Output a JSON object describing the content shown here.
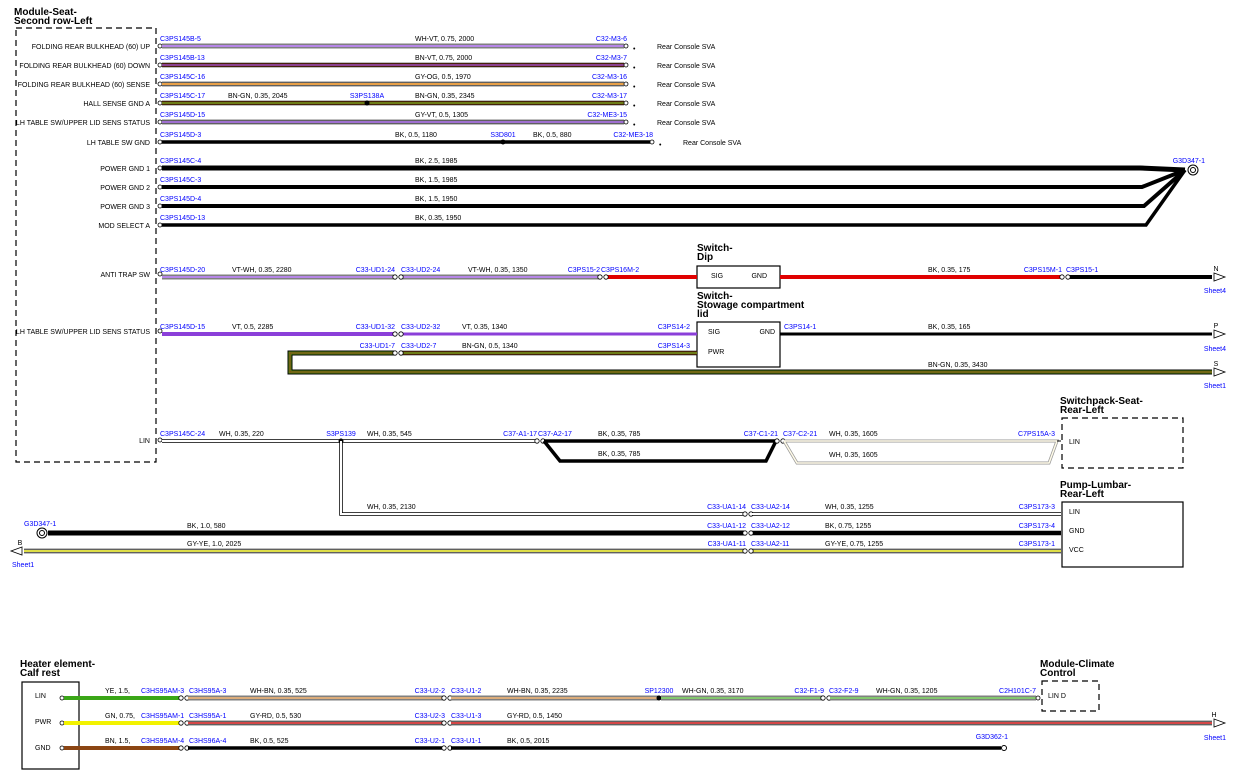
{
  "modules": {
    "seat": "Module-Seat-\nSecond row-Left",
    "dip": "Switch-\nDip",
    "stowage": "Switch-\nStowage compartment\nlid",
    "switchpack": "Switchpack-Seat-\nRear-Left",
    "pump": "Pump-Lumbar-\nRear-Left",
    "heater": "Heater element-\nCalf rest",
    "climate": "Module-Climate\nControl"
  },
  "pins": {
    "seat": [
      "FOLDING REAR BULKHEAD (60) UP",
      "FOLDING REAR BULKHEAD (60) DOWN",
      "FOLDING REAR BULKHEAD (60) SENSE",
      "HALL SENSE GND A",
      "LH TABLE SW/UPPER LID SENS STATUS",
      "LH TABLE SW GND",
      "POWER GND 1",
      "POWER GND 2",
      "POWER GND 3",
      "MOD SELECT A",
      "ANTI TRAP SW",
      "LH TABLE SW/UPPER LID SENS STATUS",
      "LIN"
    ],
    "dip": [
      "SIG",
      "GND"
    ],
    "stowage": [
      "SIG",
      "GND",
      "PWR"
    ],
    "switchpack": [
      "LIN"
    ],
    "pump": [
      "LIN",
      "GND",
      "VCC"
    ],
    "heater": [
      "LIN",
      "PWR",
      "GND"
    ],
    "climate": [
      "LIN D"
    ]
  },
  "wires": [
    {
      "c1": "C3PS145B-5",
      "spec": "WH-VT, 0.75, 2000",
      "c2": "C32-M3-6",
      "dest": "Rear Console SVA",
      "colors": [
        "#ffffff",
        "#8b3fd9"
      ]
    },
    {
      "c1": "C3PS145B-13",
      "spec": "BN-VT, 0.75, 2000",
      "c2": "C32-M3-7",
      "dest": "Rear Console SVA",
      "colors": [
        "#8b4513",
        "#8b3fd9"
      ]
    },
    {
      "c1": "C3PS145C-16",
      "spec": "GY-OG, 0.5, 1970",
      "c2": "C32-M3-16",
      "dest": "Rear Console SVA",
      "colors": [
        "#c0c0c0",
        "#ff8c00"
      ]
    },
    {
      "c1": "C3PS145C-17",
      "spec1": "BN-GN, 0.35, 2045",
      "splice": "S3PS138A",
      "spec": "BN-GN, 0.35, 2345",
      "c2": "C32-M3-17",
      "dest": "Rear Console SVA",
      "colors": [
        "#8b4513",
        "#5a9e1a"
      ]
    },
    {
      "c1": "C3PS145D-15",
      "spec": "GY-VT, 0.5, 1305",
      "c2": "C32-ME3-15",
      "dest": "Rear Console SVA",
      "colors": [
        "#c0c0c0",
        "#8b3fd9"
      ]
    },
    {
      "c1": "C3PS145D-3",
      "spec1": "BK, 0.5, 1180",
      "splice": "S3D801",
      "spec": "BK, 0.5, 880",
      "c2": "C32-ME3-18",
      "dest": "Rear Console SVA",
      "colors": [
        "#000000"
      ]
    },
    {
      "c1": "C3PS145C-4",
      "spec": "BK, 2.5, 1985",
      "colors": [
        "#000000"
      ]
    },
    {
      "c1": "C3PS145C-3",
      "spec": "BK, 1.5, 1985",
      "colors": [
        "#000000"
      ]
    },
    {
      "c1": "C3PS145D-4",
      "spec": "BK, 1.5, 1950",
      "colors": [
        "#000000"
      ]
    },
    {
      "c1": "C3PS145D-13",
      "spec": "BK, 0.35, 1950",
      "colors": [
        "#000000"
      ]
    }
  ],
  "ground_top": "G3D347-1",
  "antitrap": {
    "c1": "C3PS145D-20",
    "s1": "VT-WH, 0.35, 2280",
    "ca": "C33-UD1-24",
    "cb": "C33-UD2-24",
    "s2": "VT-WH, 0.35, 1350",
    "cc": "C3PS15-2",
    "cd": "C3PS16M-2",
    "ce": "C3PS15M-1",
    "cf": "C3PS15-1",
    "s3": "BK, 0.35, 175",
    "off": "N",
    "sheet": "Sheet4"
  },
  "lidsens": {
    "c1": "C3PS145D-15",
    "s1": "VT, 0.5, 2285",
    "ca": "C33-UD1-32",
    "cb": "C33-UD2-32",
    "s2": "VT, 0.35, 1340",
    "cc": "C3PS14-2",
    "cd": "C3PS14-1",
    "s3": "BK, 0.35, 165",
    "off": "P",
    "sheet": "Sheet4"
  },
  "pwr": {
    "ca": "C33-UD1-7",
    "cb": "C33-UD2-7",
    "s1": "BN-GN, 0.5, 1340",
    "cc": "C3PS14-3",
    "s2": "BN-GN, 0.35, 3430",
    "off": "S",
    "sheet": "Sheet1"
  },
  "lin": {
    "c1": "C3PS145C-24",
    "s1": "WH, 0.35, 220",
    "splice": "S3PS139",
    "s2": "WH, 0.35, 545",
    "ca": "C37-A1-17",
    "cb": "C37-A2-17",
    "s3": "BK, 0.35, 785",
    "s3b": "BK, 0.35, 785",
    "cc": "C37-C1-21",
    "cd": "C37-C2-21",
    "s4": "WH, 0.35, 1605",
    "s4b": "WH, 0.35, 1605",
    "ce": "C7PS15A-3",
    "s5": "WH, 0.35, 2130",
    "cf": "C33-UA1-14",
    "cg": "C33-UA2-14",
    "s6": "WH, 0.35, 1255",
    "ch": "C3PS173-3"
  },
  "gnd2": {
    "g": "G3D347-1",
    "s1": "BK, 1.0, 580",
    "ca": "C33-UA1-12",
    "cb": "C33-UA2-12",
    "s2": "BK, 0.75, 1255",
    "cc": "C3PS173-4"
  },
  "vcc": {
    "off": "B",
    "sheet": "Sheet1",
    "s1": "GY-YE, 1.0, 2025",
    "ca": "C33-UA1-11",
    "cb": "C33-UA2-11",
    "s2": "GY-YE, 0.75, 1255",
    "cc": "C3PS173-1"
  },
  "heat_lin": {
    "s1": "YE, 1.5,",
    "c1": "C3HS95AM-3",
    "c2": "C3HS95A-3",
    "s2": "WH-BN, 0.35, 525",
    "c3": "C33-U2-2",
    "c4": "C33-U1-2",
    "s3": "WH-BN, 0.35, 2235",
    "sp": "SP12300",
    "s4": "WH-GN, 0.35, 3170",
    "c5": "C32-F1-9",
    "c6": "C32-F2-9",
    "s5": "WH-GN, 0.35, 1205",
    "c7": "C2H101C-7"
  },
  "heat_pwr": {
    "s1": "GN, 0.75,",
    "c1": "C3HS95AM-1",
    "c2": "C3HS95A-1",
    "s2": "GY-RD, 0.5, 530",
    "c3": "C33-U2-3",
    "c4": "C33-U1-3",
    "s3": "GY-RD, 0.5, 1450",
    "off": "H",
    "sheet": "Sheet1"
  },
  "heat_gnd": {
    "s1": "BN, 1.5,",
    "c1": "C3HS95AM-4",
    "c2": "C3HS96A-4",
    "s2": "BK, 0.5, 525",
    "c3": "C33-U2-1",
    "c4": "C33-U1-1",
    "s3": "BK, 0.5, 2015",
    "g": "G3D362-1"
  }
}
